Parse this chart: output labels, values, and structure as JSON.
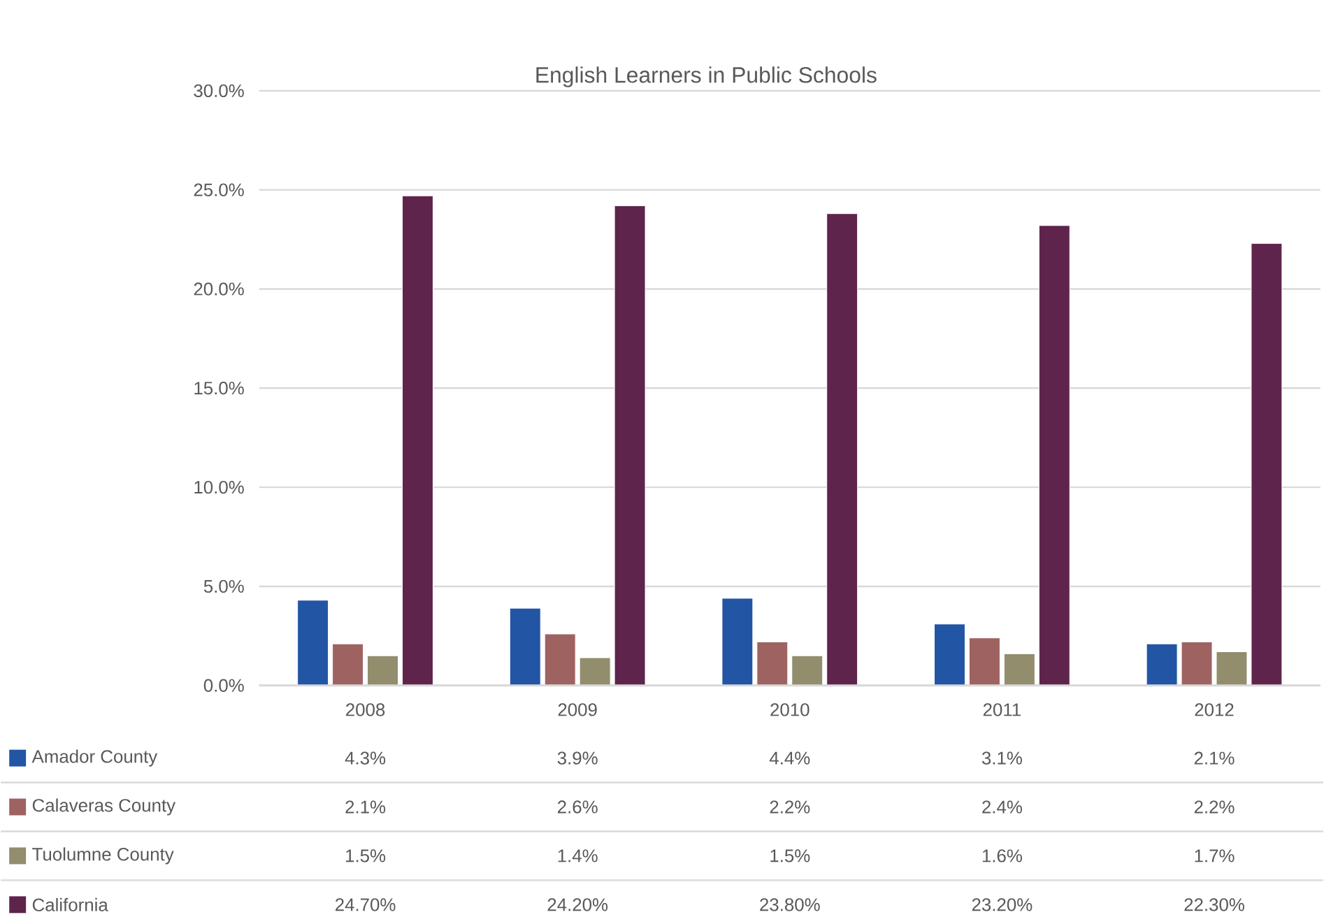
{
  "chart_data": {
    "type": "bar",
    "title": "English Learners in Public Schools",
    "categories": [
      "2008",
      "2009",
      "2010",
      "2011",
      "2012"
    ],
    "series": [
      {
        "name": "Amador County",
        "color": "#2255a4",
        "values": [
          4.3,
          3.9,
          4.4,
          3.1,
          2.1
        ],
        "value_labels": [
          "4.3%",
          "3.9%",
          "4.4%",
          "3.1%",
          "2.1%"
        ]
      },
      {
        "name": "Calaveras County",
        "color": "#9e6361",
        "values": [
          2.1,
          2.6,
          2.2,
          2.4,
          2.2
        ],
        "value_labels": [
          "2.1%",
          "2.6%",
          "2.2%",
          "2.4%",
          "2.2%"
        ]
      },
      {
        "name": "Tuolumne County",
        "color": "#918d6d",
        "values": [
          1.5,
          1.4,
          1.5,
          1.6,
          1.7
        ],
        "value_labels": [
          "1.5%",
          "1.4%",
          "1.5%",
          "1.6%",
          "1.7%"
        ]
      },
      {
        "name": "California",
        "color": "#5e244c",
        "values": [
          24.7,
          24.2,
          23.8,
          23.2,
          22.3
        ],
        "value_labels": [
          "24.70%",
          "24.20%",
          "23.80%",
          "23.20%",
          "22.30%"
        ]
      }
    ],
    "ylim": [
      0,
      30
    ],
    "yticks": [
      {
        "value": 0,
        "label": "0.0%"
      },
      {
        "value": 5,
        "label": "5.0%"
      },
      {
        "value": 10,
        "label": "10.0%"
      },
      {
        "value": 15,
        "label": "15.0%"
      },
      {
        "value": 20,
        "label": "20.0%"
      },
      {
        "value": 25,
        "label": "25.0%"
      },
      {
        "value": 30,
        "label": "30.0%"
      }
    ],
    "grid": "y",
    "legend": "bottom"
  }
}
